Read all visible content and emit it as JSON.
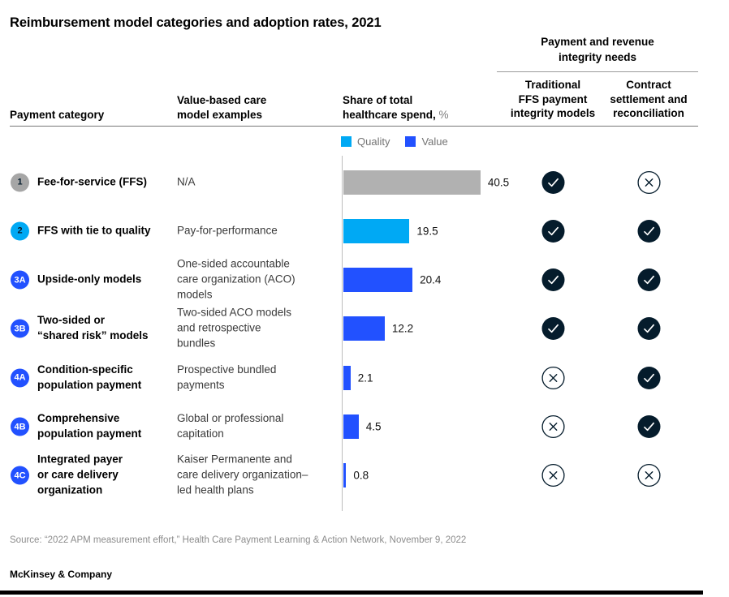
{
  "title": "Reimbursement model categories and adoption rates, 2021",
  "columns": {
    "payment_category": "Payment category",
    "examples": "Value-based care\nmodel examples",
    "share_label": "Share of total\nhealthcare spend,",
    "share_unit": " %",
    "integrity_group": "Payment and revenue\nintegrity needs",
    "integrity_col1": "Traditional\nFFS payment\nintegrity models",
    "integrity_col2": "Contract\nsettlement and\nreconciliation"
  },
  "legend": [
    {
      "label": "Quality",
      "color": "#00A9F4"
    },
    {
      "label": "Value",
      "color": "#2251FF"
    }
  ],
  "colors": {
    "cyan": "#00A9F4",
    "blue": "#2251FF",
    "gray_bar": "#B1B1B1",
    "navy": "#051C2C"
  },
  "chart_data": {
    "type": "bar",
    "orientation": "horizontal",
    "title": "Share of total healthcare spend, %",
    "categories": [
      "Fee-for-service (FFS)",
      "FFS with tie to quality",
      "Upside-only models",
      "Two-sided or “shared risk” models",
      "Condition-specific population payment",
      "Comprehensive population payment",
      "Integrated payer or care delivery organization"
    ],
    "values": [
      40.5,
      19.5,
      20.4,
      12.2,
      2.1,
      4.5,
      0.8
    ],
    "bar_series": [
      "FFS (gray)",
      "Quality",
      "Value",
      "Value",
      "Value",
      "Value",
      "Value"
    ],
    "legend": [
      "Quality",
      "Value"
    ],
    "legend_position": "top",
    "xlim": [
      0,
      42
    ],
    "grid": false
  },
  "rows": [
    {
      "badge": "1",
      "badge_bg": "#A6A6A6",
      "badge_fg": "#051C2C",
      "category": "Fee-for-service (FFS)",
      "example": "N/A",
      "value": 40.5,
      "value_label": "40.5",
      "bar_color": "#B1B1B1",
      "ffs_integrity": "check",
      "contract_settlement": "cross"
    },
    {
      "badge": "2",
      "badge_bg": "#00A9F4",
      "badge_fg": "#051C2C",
      "category": "FFS with tie to quality",
      "example": "Pay-for-performance",
      "value": 19.5,
      "value_label": "19.5",
      "bar_color": "#00A9F4",
      "ffs_integrity": "check",
      "contract_settlement": "check"
    },
    {
      "badge": "3A",
      "badge_bg": "#2251FF",
      "badge_fg": "#FFFFFF",
      "category": "Upside-only models",
      "example": "One-sided accountable\ncare organization (ACO)\nmodels",
      "value": 20.4,
      "value_label": "20.4",
      "bar_color": "#2251FF",
      "ffs_integrity": "check",
      "contract_settlement": "check"
    },
    {
      "badge": "3B",
      "badge_bg": "#2251FF",
      "badge_fg": "#FFFFFF",
      "category": "Two-sided or\n“shared risk” models",
      "example": "Two-sided ACO models\nand retrospective\nbundles",
      "value": 12.2,
      "value_label": "12.2",
      "bar_color": "#2251FF",
      "ffs_integrity": "check",
      "contract_settlement": "check"
    },
    {
      "badge": "4A",
      "badge_bg": "#2251FF",
      "badge_fg": "#FFFFFF",
      "category": "Condition-specific\npopulation payment",
      "example": "Prospective bundled\npayments",
      "value": 2.1,
      "value_label": "2.1",
      "bar_color": "#2251FF",
      "ffs_integrity": "cross",
      "contract_settlement": "check"
    },
    {
      "badge": "4B",
      "badge_bg": "#2251FF",
      "badge_fg": "#FFFFFF",
      "category": "Comprehensive\npopulation payment",
      "example": "Global or professional\ncapitation",
      "value": 4.5,
      "value_label": "4.5",
      "bar_color": "#2251FF",
      "ffs_integrity": "cross",
      "contract_settlement": "check"
    },
    {
      "badge": "4C",
      "badge_bg": "#2251FF",
      "badge_fg": "#FFFFFF",
      "category": "Integrated payer\nor care delivery\norganization",
      "example": "Kaiser Permanente and\ncare delivery organization–\nled health plans",
      "value": 0.8,
      "value_label": "0.8",
      "bar_color": "#2251FF",
      "ffs_integrity": "cross",
      "contract_settlement": "cross"
    }
  ],
  "source": "Source: “2022 APM measurement effort,” Health Care Payment Learning & Action Network, November 9, 2022",
  "brand": "McKinsey & Company"
}
